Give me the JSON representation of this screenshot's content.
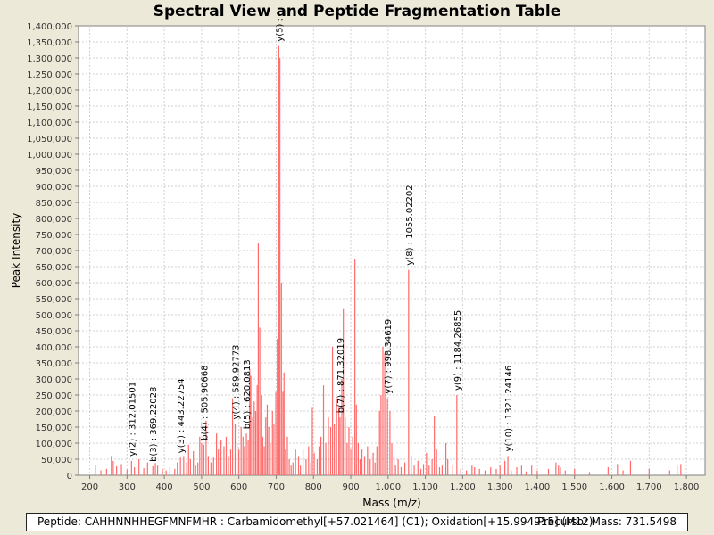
{
  "chart_data": {
    "type": "bar",
    "title": "Spectral View and Peptide Fragmentation Table",
    "xlabel": "Mass (m/z)",
    "ylabel": "Peak Intensity",
    "xlim": [
      170,
      1850
    ],
    "ylim": [
      0,
      1400000
    ],
    "xticks": [
      200,
      300,
      400,
      500,
      600,
      700,
      800,
      900,
      1000,
      1100,
      1200,
      1300,
      1400,
      1500,
      1600,
      1700,
      1800
    ],
    "yticks": [
      0,
      50000,
      100000,
      150000,
      200000,
      250000,
      300000,
      350000,
      400000,
      450000,
      500000,
      550000,
      600000,
      650000,
      700000,
      750000,
      800000,
      850000,
      900000,
      950000,
      1000000,
      1050000,
      1100000,
      1150000,
      1200000,
      1250000,
      1300000,
      1350000,
      1400000
    ],
    "grid": true,
    "color": "#ff6b6b",
    "peaks": [
      [
        215,
        30000
      ],
      [
        230,
        15000
      ],
      [
        245,
        20000
      ],
      [
        258,
        60000
      ],
      [
        263,
        45000
      ],
      [
        272,
        28000
      ],
      [
        285,
        35000
      ],
      [
        300,
        18000
      ],
      [
        312.01501,
        45000
      ],
      [
        320,
        25000
      ],
      [
        332,
        50000
      ],
      [
        345,
        22000
      ],
      [
        355,
        40000
      ],
      [
        369.22028,
        28000
      ],
      [
        376,
        38000
      ],
      [
        382,
        30000
      ],
      [
        395,
        20000
      ],
      [
        405,
        15000
      ],
      [
        415,
        25000
      ],
      [
        428,
        20000
      ],
      [
        435,
        40000
      ],
      [
        443.22754,
        55000
      ],
      [
        452,
        60000
      ],
      [
        460,
        40000
      ],
      [
        465,
        95000
      ],
      [
        470,
        50000
      ],
      [
        478,
        75000
      ],
      [
        484,
        30000
      ],
      [
        490,
        40000
      ],
      [
        495,
        120000
      ],
      [
        500,
        100000
      ],
      [
        505.90668,
        95000
      ],
      [
        512,
        170000
      ],
      [
        518,
        60000
      ],
      [
        525,
        40000
      ],
      [
        532,
        55000
      ],
      [
        540,
        130000
      ],
      [
        545,
        80000
      ],
      [
        552,
        110000
      ],
      [
        560,
        90000
      ],
      [
        566,
        120000
      ],
      [
        572,
        60000
      ],
      [
        578,
        80000
      ],
      [
        583,
        240000
      ],
      [
        589.92773,
        160000
      ],
      [
        595,
        100000
      ],
      [
        600,
        80000
      ],
      [
        606,
        150000
      ],
      [
        611,
        120000
      ],
      [
        615,
        90000
      ],
      [
        620.0813,
        130000
      ],
      [
        625,
        110000
      ],
      [
        629,
        330000
      ],
      [
        632,
        310000
      ],
      [
        637,
        180000
      ],
      [
        641,
        230000
      ],
      [
        645,
        200000
      ],
      [
        649,
        280000
      ],
      [
        652,
        722000
      ],
      [
        656,
        460000
      ],
      [
        660,
        250000
      ],
      [
        664,
        120000
      ],
      [
        668,
        90000
      ],
      [
        672,
        180000
      ],
      [
        676,
        220000
      ],
      [
        680,
        150000
      ],
      [
        684,
        100000
      ],
      [
        690,
        200000
      ],
      [
        694,
        160000
      ],
      [
        699,
        260000
      ],
      [
        703,
        425000
      ],
      [
        707,
        1337000
      ],
      [
        710,
        1300000
      ],
      [
        714,
        600000
      ],
      [
        718,
        260000
      ],
      [
        721,
        320000
      ],
      [
        725,
        80000
      ],
      [
        730,
        120000
      ],
      [
        735,
        50000
      ],
      [
        740,
        30000
      ],
      [
        745,
        40000
      ],
      [
        752,
        80000
      ],
      [
        760,
        60000
      ],
      [
        765,
        30000
      ],
      [
        772,
        80000
      ],
      [
        780,
        50000
      ],
      [
        787,
        90000
      ],
      [
        793,
        40000
      ],
      [
        797,
        210000
      ],
      [
        802,
        70000
      ],
      [
        810,
        50000
      ],
      [
        815,
        90000
      ],
      [
        820,
        120000
      ],
      [
        827,
        280000
      ],
      [
        833,
        100000
      ],
      [
        840,
        180000
      ],
      [
        846,
        150000
      ],
      [
        851,
        400000
      ],
      [
        856,
        160000
      ],
      [
        862,
        240000
      ],
      [
        868,
        210000
      ],
      [
        871.32019,
        180000
      ],
      [
        876,
        300000
      ],
      [
        880,
        520000
      ],
      [
        885,
        180000
      ],
      [
        890,
        100000
      ],
      [
        895,
        150000
      ],
      [
        900,
        80000
      ],
      [
        905,
        120000
      ],
      [
        911,
        675000
      ],
      [
        915,
        220000
      ],
      [
        920,
        100000
      ],
      [
        925,
        50000
      ],
      [
        930,
        80000
      ],
      [
        937,
        60000
      ],
      [
        945,
        90000
      ],
      [
        952,
        50000
      ],
      [
        960,
        70000
      ],
      [
        965,
        40000
      ],
      [
        970,
        90000
      ],
      [
        977,
        200000
      ],
      [
        981,
        250000
      ],
      [
        986,
        400000
      ],
      [
        991,
        380000
      ],
      [
        998.34619,
        240000
      ],
      [
        1005,
        200000
      ],
      [
        1010,
        100000
      ],
      [
        1016,
        60000
      ],
      [
        1020,
        30000
      ],
      [
        1027,
        50000
      ],
      [
        1035,
        25000
      ],
      [
        1045,
        40000
      ],
      [
        1055.02202,
        640000
      ],
      [
        1062,
        60000
      ],
      [
        1070,
        30000
      ],
      [
        1080,
        45000
      ],
      [
        1088,
        20000
      ],
      [
        1095,
        35000
      ],
      [
        1103,
        70000
      ],
      [
        1110,
        30000
      ],
      [
        1118,
        50000
      ],
      [
        1124,
        185000
      ],
      [
        1130,
        80000
      ],
      [
        1138,
        25000
      ],
      [
        1145,
        30000
      ],
      [
        1155,
        100000
      ],
      [
        1160,
        50000
      ],
      [
        1172,
        30000
      ],
      [
        1184.26855,
        250000
      ],
      [
        1195,
        20000
      ],
      [
        1210,
        15000
      ],
      [
        1225,
        30000
      ],
      [
        1232,
        25000
      ],
      [
        1245,
        20000
      ],
      [
        1260,
        15000
      ],
      [
        1275,
        25000
      ],
      [
        1290,
        20000
      ],
      [
        1300,
        30000
      ],
      [
        1313,
        45000
      ],
      [
        1321.24146,
        60000
      ],
      [
        1330,
        15000
      ],
      [
        1345,
        25000
      ],
      [
        1358,
        30000
      ],
      [
        1370,
        12000
      ],
      [
        1385,
        30000
      ],
      [
        1400,
        15000
      ],
      [
        1430,
        20000
      ],
      [
        1450,
        40000
      ],
      [
        1457,
        30000
      ],
      [
        1462,
        25000
      ],
      [
        1475,
        15000
      ],
      [
        1500,
        20000
      ],
      [
        1540,
        10000
      ],
      [
        1590,
        25000
      ],
      [
        1615,
        35000
      ],
      [
        1630,
        15000
      ],
      [
        1650,
        45000
      ],
      [
        1700,
        20000
      ],
      [
        1755,
        15000
      ],
      [
        1775,
        30000
      ],
      [
        1785,
        35000
      ]
    ],
    "annotations": [
      {
        "x": 312.01501,
        "y": 45000,
        "text": "y(2) : 312.01501"
      },
      {
        "x": 369.22028,
        "y": 28000,
        "text": "b(3) : 369.22028"
      },
      {
        "x": 443.22754,
        "y": 55000,
        "text": "y(3) : 443.22754"
      },
      {
        "x": 505.90668,
        "y": 95000,
        "text": "b(4) : 505.90668"
      },
      {
        "x": 589.92773,
        "y": 160000,
        "text": "y(4) : 589.92773"
      },
      {
        "x": 620.0813,
        "y": 130000,
        "text": "b(5) : 620.0813"
      },
      {
        "x": 707,
        "y": 1337000,
        "text": "y(5) :"
      },
      {
        "x": 871.32019,
        "y": 180000,
        "text": "b(7) : 871.32019"
      },
      {
        "x": 998.34619,
        "y": 240000,
        "text": "y(7) : 998.34619"
      },
      {
        "x": 1055.02202,
        "y": 640000,
        "text": "y(8) : 1055.02202"
      },
      {
        "x": 1184.26855,
        "y": 250000,
        "text": "y(9) : 1184.26855"
      },
      {
        "x": 1321.24146,
        "y": 60000,
        "text": "y(10) : 1321.24146"
      }
    ]
  },
  "footer": {
    "peptide": "Peptide: CAHHNNHHEGFMNFMHR : Carbamidomethyl[+57.021464] (C1); Oxidation[+15.994915] (M12)",
    "precursor": "Precursor Mass: 731.5498"
  }
}
